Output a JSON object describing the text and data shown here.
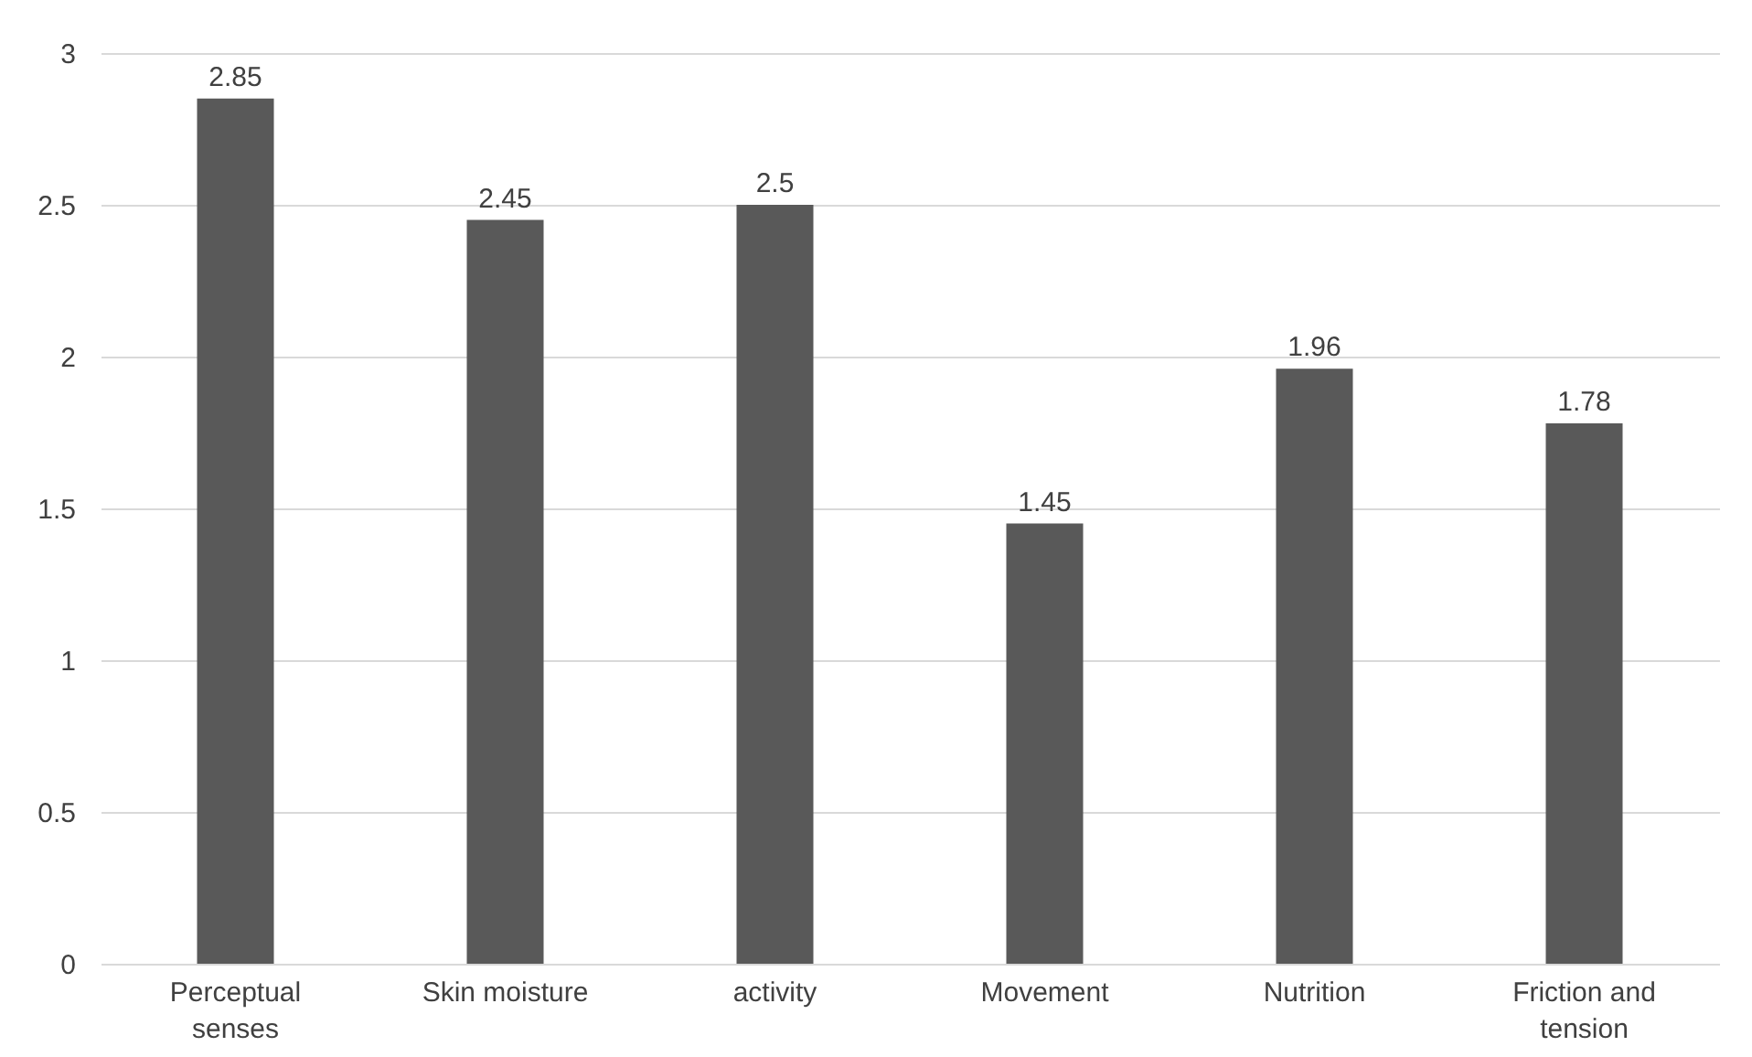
{
  "chart_data": {
    "type": "bar",
    "categories": [
      "Perceptual senses",
      "Skin moisture",
      "activity",
      "Movement",
      "Nutrition",
      "Friction and tension"
    ],
    "values": [
      2.85,
      2.45,
      2.5,
      1.45,
      1.96,
      1.78
    ],
    "color": "#595959",
    "ylim": [
      0,
      3
    ],
    "yticks": [
      0,
      0.5,
      1,
      1.5,
      2,
      2.5,
      3
    ],
    "grid": "y",
    "data_labels": true
  }
}
